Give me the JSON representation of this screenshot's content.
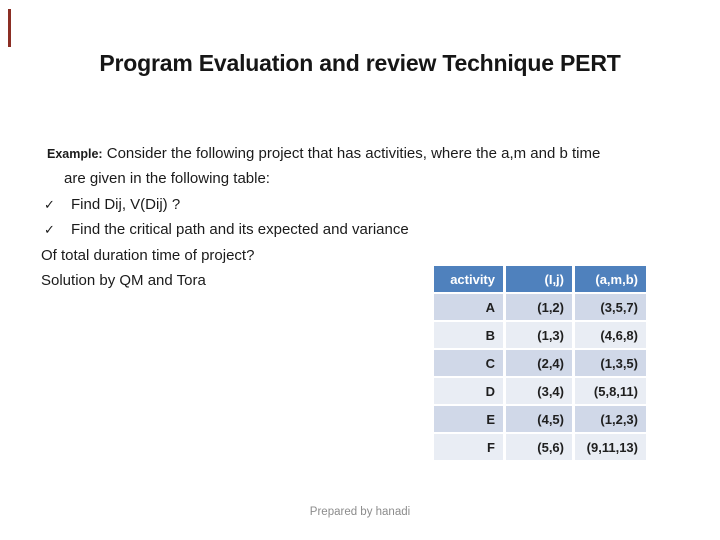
{
  "slide": {
    "title": "Program Evaluation and review Technique PERT",
    "body": {
      "example_label": "Example:",
      "example_text": " Consider the following project that has activities, where the a,m and b time",
      "example_text_line2": "are given in the following table:",
      "check_glyph": "✓",
      "bullet1": "Find Dij, V(Dij) ?",
      "bullet2": "Find the critical path and its expected and variance",
      "question_line": "Of total duration time of project?",
      "solution_line": "Solution by QM and Tora"
    },
    "table": {
      "headers": [
        "activity",
        "(I,j)",
        "(a,m,b)"
      ],
      "rows": [
        [
          "A",
          "(1,2)",
          "(3,5,7)"
        ],
        [
          "B",
          "(1,3)",
          "(4,6,8)"
        ],
        [
          "C",
          "(2,4)",
          "(1,3,5)"
        ],
        [
          "D",
          "(3,4)",
          "(5,8,11)"
        ],
        [
          "E",
          "(4,5)",
          "(1,2,3)"
        ],
        [
          "F",
          "(5,6)",
          "(9,11,13)"
        ]
      ]
    },
    "footer": "Prepared by hanadi",
    "colors": {
      "header_bg": "#4F81BD",
      "header_text": "#FFFFFF",
      "row_band_dark": "#D0D8E8",
      "row_band_light": "#E9EDF4",
      "accent_red": "#8B2E24",
      "footer_gray": "#8C8C8C"
    }
  }
}
